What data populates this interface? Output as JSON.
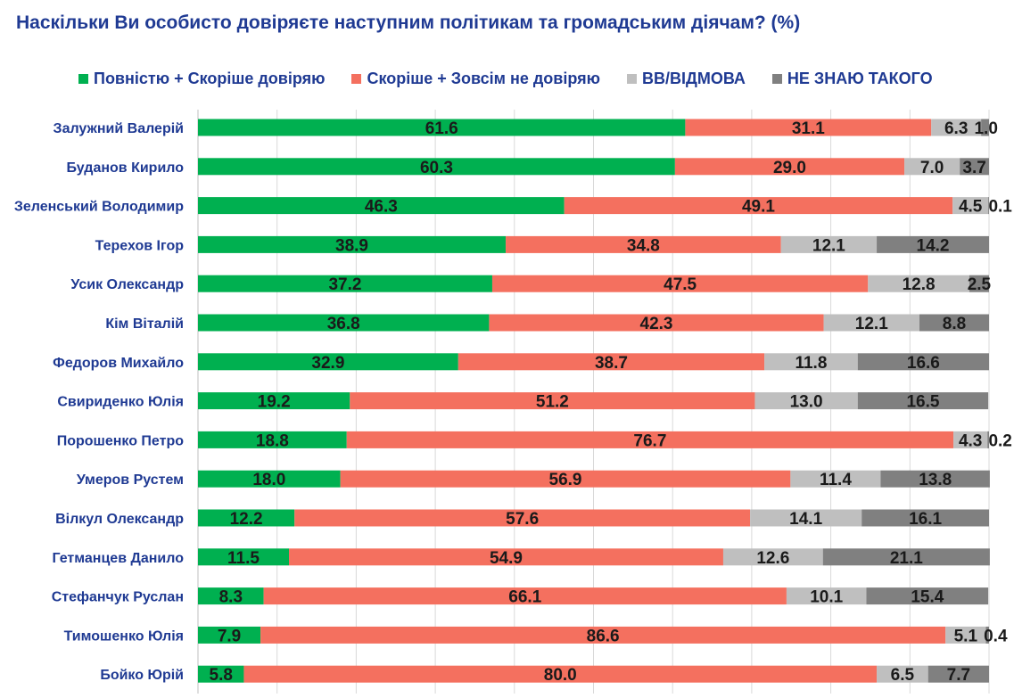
{
  "chart_data": {
    "type": "bar",
    "orientation": "horizontal",
    "stacked": true,
    "title": "Наскільки Ви особисто довіряєте наступним політикам та громадським діячам? (%)",
    "xlim": [
      0,
      100
    ],
    "categories": [
      "Залужний Валерій",
      "Буданов Кирило",
      "Зеленський Володимир",
      "Терехов Ігор",
      "Усик Олександр",
      "Кім Віталій",
      "Федоров Михайло",
      "Свириденко Юлія",
      "Порошенко Петро",
      "Умеров Рустем",
      "Вілкул Олександр",
      "Гетманцев Данило",
      "Стефанчук Руслан",
      "Тимошенко Юлія",
      "Бойко Юрій"
    ],
    "series": [
      {
        "name": "Повністю + Скоріше довіряю",
        "color": "#00b050",
        "values": [
          61.6,
          60.3,
          46.3,
          38.9,
          37.2,
          36.8,
          32.9,
          19.2,
          18.8,
          18.0,
          12.2,
          11.5,
          8.3,
          7.9,
          5.8
        ]
      },
      {
        "name": "Скоріше + Зовсім не довіряю",
        "color": "#f4705f",
        "values": [
          31.1,
          29.0,
          49.1,
          34.8,
          47.5,
          42.3,
          38.7,
          51.2,
          76.7,
          56.9,
          57.6,
          54.9,
          66.1,
          86.6,
          80.0
        ]
      },
      {
        "name": "ВВ/ВІДМОВА",
        "color": "#bfbfbf",
        "values": [
          6.3,
          7.0,
          4.5,
          12.1,
          12.8,
          12.1,
          11.8,
          13.0,
          4.3,
          11.4,
          14.1,
          12.6,
          10.1,
          5.1,
          6.5
        ]
      },
      {
        "name": "НЕ ЗНАЮ ТАКОГО",
        "color": "#808080",
        "values": [
          1.0,
          3.7,
          0.1,
          14.2,
          2.5,
          8.8,
          16.6,
          16.5,
          0.2,
          13.8,
          16.1,
          21.1,
          15.4,
          0.4,
          7.7
        ]
      }
    ]
  }
}
